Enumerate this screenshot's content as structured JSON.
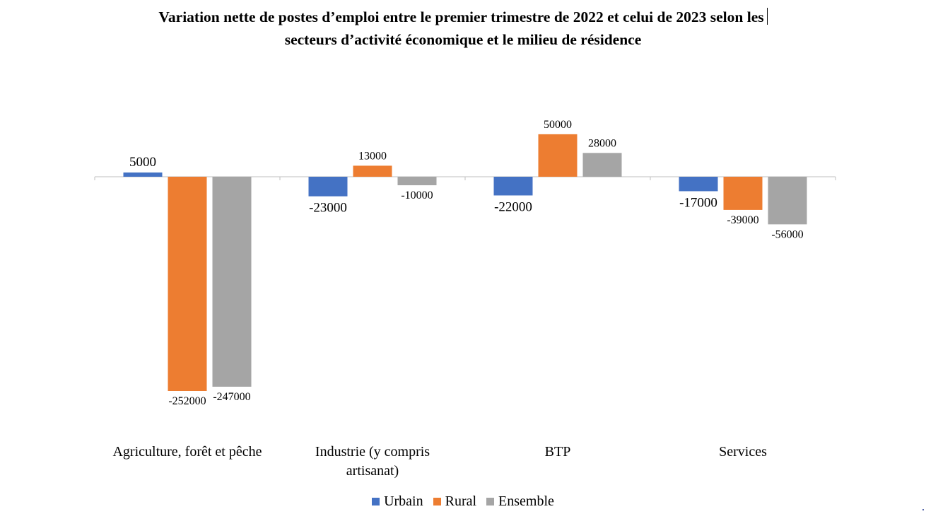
{
  "chart_data": {
    "type": "bar",
    "title_line1": "Variation nette de postes d’emploi entre le premier trimestre de 2022 et celui de 2023 selon les",
    "title_line2": "secteurs d’activité économique et le milieu de résidence",
    "categories": [
      [
        "Agriculture, forêt et pêche"
      ],
      [
        "Industrie (y compris",
        "artisanat)"
      ],
      [
        "BTP"
      ],
      [
        "Services"
      ]
    ],
    "series": [
      {
        "name": "Urbain",
        "color": "#4472C4",
        "values": [
          5000,
          -23000,
          -22000,
          -17000
        ]
      },
      {
        "name": "Rural",
        "color": "#ED7D31",
        "values": [
          -252000,
          13000,
          50000,
          -39000
        ]
      },
      {
        "name": "Ensemble",
        "color": "#A5A5A5",
        "values": [
          -247000,
          -10000,
          28000,
          -56000
        ]
      }
    ],
    "value_labels": [
      [
        "5000",
        "-23000",
        "-22000",
        "-17000"
      ],
      [
        "-252000",
        "13000",
        "50000",
        "-39000"
      ],
      [
        "-247000",
        "-10000",
        "28000",
        "-56000"
      ]
    ],
    "legend_position": "bottom",
    "grid": false
  }
}
